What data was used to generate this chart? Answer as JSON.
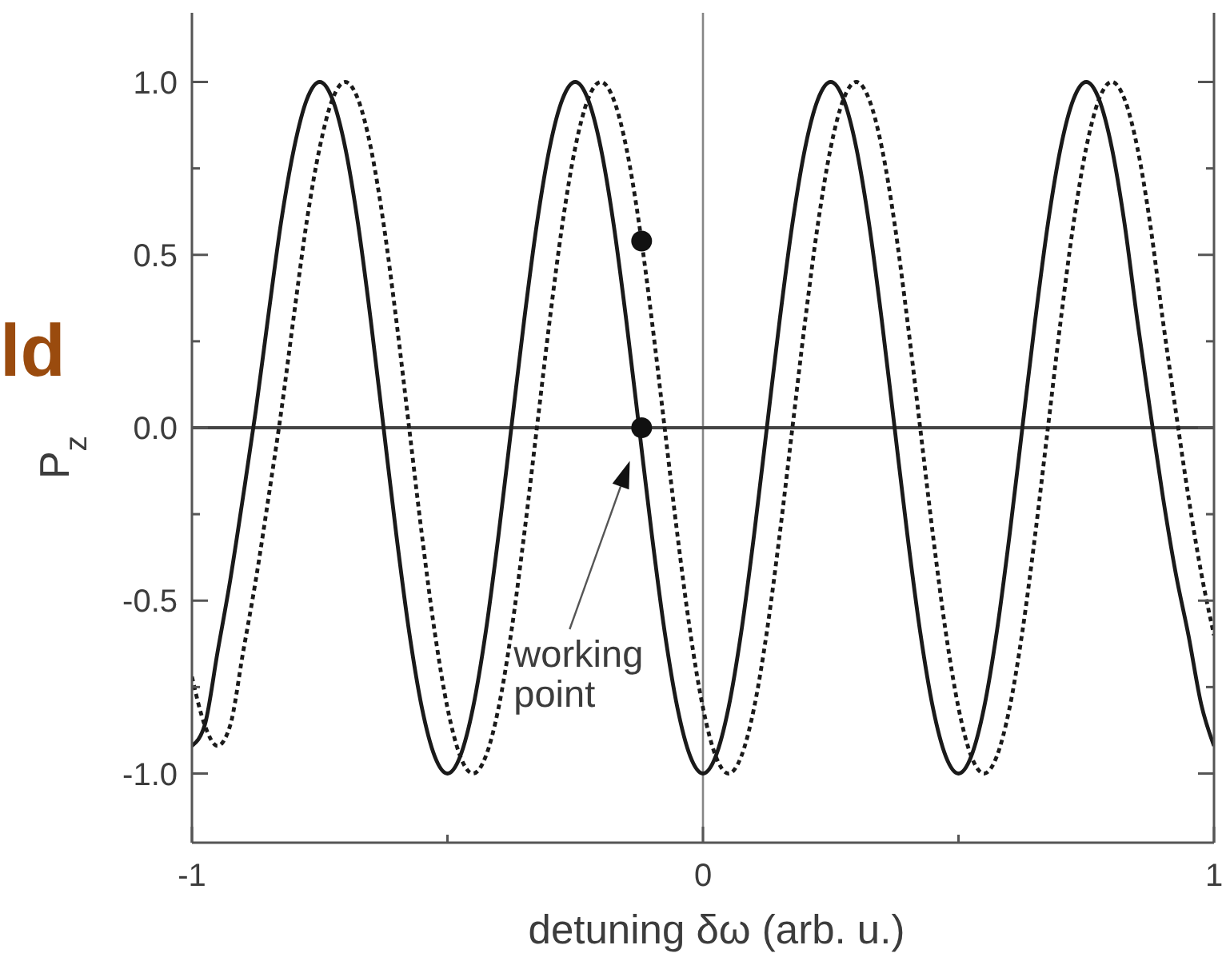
{
  "chart_data": {
    "type": "line",
    "xlabel": "detuning δω (arb. u.)",
    "ylabel": "P$_{z}$",
    "x": [
      -1,
      -0.975,
      -0.95,
      -0.925,
      -0.9,
      -0.875,
      -0.85,
      -0.825,
      -0.8,
      -0.775,
      -0.75,
      -0.725,
      -0.7,
      -0.675,
      -0.65,
      -0.625,
      -0.6,
      -0.575,
      -0.55,
      -0.525,
      -0.5,
      -0.475,
      -0.45,
      -0.425,
      -0.4,
      -0.375,
      -0.35,
      -0.325,
      -0.3,
      -0.275,
      -0.25,
      -0.225,
      -0.2,
      -0.175,
      -0.15,
      -0.125,
      -0.1,
      -0.075,
      -0.05,
      -0.025,
      0,
      0.025,
      0.05,
      0.075,
      0.1,
      0.125,
      0.15,
      0.175,
      0.2,
      0.225,
      0.25,
      0.275,
      0.3,
      0.325,
      0.35,
      0.375,
      0.4,
      0.425,
      0.45,
      0.475,
      0.5,
      0.525,
      0.55,
      0.575,
      0.6,
      0.625,
      0.65,
      0.675,
      0.7,
      0.725,
      0.75,
      0.775,
      0.8,
      0.825,
      0.85,
      0.875,
      0.9,
      0.925,
      0.95,
      0.975,
      1
    ],
    "xlim": [
      -1,
      1
    ],
    "ylim": [
      -1.2,
      1.2
    ],
    "xticks": [
      -1,
      {
        "value": -0.5,
        "label": null
      },
      0,
      {
        "value": 0.5,
        "label": null
      },
      1
    ],
    "yticks": [
      {
        "value": -1,
        "label": "-1.0"
      },
      {
        "value": -0.75,
        "label": null
      },
      {
        "value": -0.5,
        "label": "-0.5"
      },
      {
        "value": -0.25,
        "label": null
      },
      {
        "value": 0,
        "label": "0.0"
      },
      {
        "value": 0.25,
        "label": null
      },
      {
        "value": 0.5,
        "label": "0.5"
      },
      {
        "value": 0.75,
        "label": null
      },
      {
        "value": 1,
        "label": "1.0"
      }
    ],
    "marker": "none",
    "series": [
      {
        "color": "#1a1a1a",
        "line_style": "solid",
        "values": [
          -0.92,
          -0.86,
          -0.65,
          -0.44,
          -0.2,
          0.05,
          0.33,
          0.6,
          0.81,
          0.95,
          1,
          0.95,
          0.81,
          0.59,
          0.31,
          0,
          -0.31,
          -0.59,
          -0.81,
          -0.95,
          -1,
          -0.95,
          -0.81,
          -0.59,
          -0.31,
          0,
          0.31,
          0.59,
          0.81,
          0.95,
          1,
          0.95,
          0.81,
          0.59,
          0.31,
          0,
          -0.31,
          -0.59,
          -0.81,
          -0.95,
          -1,
          -0.95,
          -0.81,
          -0.59,
          -0.31,
          0,
          0.31,
          0.59,
          0.81,
          0.95,
          1,
          0.95,
          0.81,
          0.59,
          0.31,
          0,
          -0.31,
          -0.59,
          -0.81,
          -0.95,
          -1,
          -0.95,
          -0.81,
          -0.59,
          -0.31,
          0,
          0.31,
          0.59,
          0.81,
          0.95,
          1,
          0.95,
          0.81,
          0.59,
          0.31,
          0.05,
          -0.2,
          -0.42,
          -0.6,
          -0.8,
          -0.92
        ]
      },
      {
        "color": "#1a1a1a",
        "line_style": "dotted",
        "values": [
          -0.72,
          -0.86,
          -0.92,
          -0.86,
          -0.65,
          -0.44,
          -0.2,
          0.05,
          0.33,
          0.6,
          0.81,
          0.95,
          1,
          0.95,
          0.81,
          0.59,
          0.31,
          0,
          -0.31,
          -0.59,
          -0.81,
          -0.95,
          -1,
          -0.95,
          -0.81,
          -0.59,
          -0.31,
          0,
          0.31,
          0.59,
          0.81,
          0.95,
          1,
          0.95,
          0.81,
          0.59,
          0.31,
          0,
          -0.31,
          -0.59,
          -0.81,
          -0.95,
          -1,
          -0.95,
          -0.81,
          -0.59,
          -0.31,
          0,
          0.31,
          0.59,
          0.81,
          0.95,
          1,
          0.95,
          0.81,
          0.59,
          0.31,
          0,
          -0.31,
          -0.59,
          -0.81,
          -0.95,
          -1,
          -0.95,
          -0.81,
          -0.59,
          -0.31,
          0,
          0.31,
          0.59,
          0.81,
          0.95,
          1,
          0.95,
          0.81,
          0.59,
          0.31,
          0.05,
          -0.2,
          -0.42,
          -0.6
        ]
      },
      {
        "type": "scatter",
        "color": "#111111",
        "marker": "circle",
        "x": [
          -0.12,
          -0.12
        ],
        "values": [
          0.54,
          0
        ]
      }
    ],
    "ref_lines": [
      {
        "axis": "x",
        "value": 0,
        "color": "#858585"
      },
      {
        "axis": "y",
        "value": 0,
        "color": "#444444"
      }
    ],
    "annotations": [
      "working point",
      "ld"
    ]
  }
}
